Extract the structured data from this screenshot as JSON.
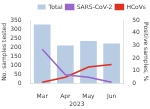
{
  "chart_data": {
    "type": "bar",
    "categories": [
      "Mar",
      "Apr",
      "May",
      "Jun"
    ],
    "xlabel": "2023",
    "ylabel": "No. samples tested",
    "y2label": "Positive samples, %",
    "series": [
      {
        "name": "Total",
        "type": "bar",
        "color": "#b8cce4",
        "values": [
          325,
          210,
          235,
          220
        ]
      },
      {
        "name": "SARS-CoV-2",
        "type": "line",
        "color": "#9966cc",
        "axis": "y2",
        "values": [
          27,
          7,
          5,
          1
        ]
      },
      {
        "name": "HCoVs",
        "type": "line",
        "color": "#e03020",
        "axis": "y2",
        "values": [
          1,
          5,
          13,
          15
        ]
      }
    ],
    "ylim": [
      0,
      350
    ],
    "yticks": [
      0,
      50,
      100,
      150,
      200,
      250,
      300,
      350
    ],
    "y2lim": [
      0,
      50
    ],
    "y2ticks": [
      0,
      10,
      20,
      30,
      40,
      50
    ],
    "grid": false,
    "legend": "upper right"
  }
}
